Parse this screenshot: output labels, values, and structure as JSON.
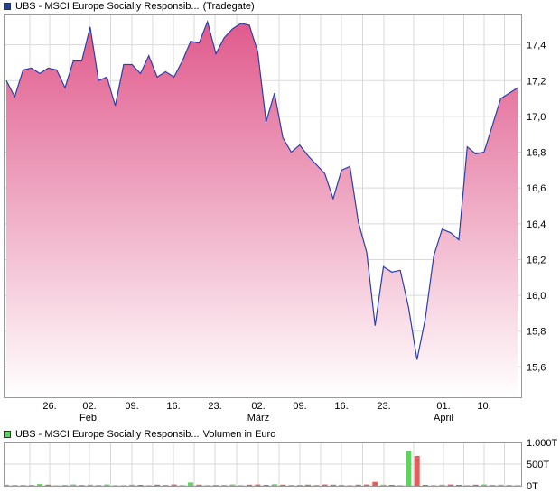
{
  "price_legend": {
    "label": "UBS - MSCI Europe Socially Responsib...",
    "venue": "(Tradegate)",
    "swatch_color": "#1f3f9f"
  },
  "volume_legend": {
    "label": "UBS - MSCI Europe Socially Responsib...",
    "unit_text": "Volumen in Euro",
    "swatch_color": "#5fd35f"
  },
  "colors": {
    "line": "#2a3fa8",
    "fill_top": "#e05a8c",
    "fill_bottom": "#ffffff",
    "grid": "#d9d9d9",
    "vol_up": "#5fd35f",
    "vol_down": "#e2605c"
  },
  "chart_data": [
    {
      "type": "area",
      "x_tick_labels": [
        "26.",
        "02.",
        "09.",
        "16.",
        "23.",
        "02.",
        "09.",
        "16.",
        "23.",
        "01.",
        "10."
      ],
      "x_month_labels": [
        {
          "label": "Feb.",
          "at_tick": 1
        },
        {
          "label": "März",
          "at_tick": 5
        },
        {
          "label": "April",
          "at_tick": 9
        }
      ],
      "y_tick_labels": [
        "17,4",
        "17,2",
        "17,0",
        "16,8",
        "16,6",
        "16,4",
        "16,2",
        "16,0",
        "15,8",
        "15,6"
      ],
      "y_ticks": [
        17.4,
        17.2,
        17.0,
        16.8,
        16.6,
        16.4,
        16.2,
        16.0,
        15.8,
        15.6
      ],
      "ylim": [
        15.43,
        17.57
      ],
      "values": [
        17.2,
        17.11,
        17.26,
        17.27,
        17.24,
        17.27,
        17.26,
        17.16,
        17.31,
        17.31,
        17.5,
        17.2,
        17.22,
        17.06,
        17.29,
        17.29,
        17.24,
        17.34,
        17.22,
        17.25,
        17.22,
        17.31,
        17.42,
        17.41,
        17.53,
        17.35,
        17.44,
        17.49,
        17.52,
        17.51,
        17.36,
        16.97,
        17.13,
        16.88,
        16.8,
        16.84,
        16.78,
        16.73,
        16.68,
        16.54,
        16.7,
        16.72,
        16.41,
        16.24,
        15.83,
        16.16,
        16.13,
        16.14,
        15.93,
        15.64,
        15.87,
        16.22,
        16.37,
        16.35,
        16.31,
        16.83,
        16.79,
        16.8,
        16.95,
        17.1,
        17.13,
        17.16
      ],
      "grid": true
    },
    {
      "type": "bar",
      "y_tick_labels": [
        "1.000T",
        "500T",
        "0T"
      ],
      "y_ticks": [
        1000,
        500,
        0
      ],
      "ylim": [
        0,
        1000
      ],
      "values": [
        25,
        15,
        15,
        20,
        40,
        25,
        10,
        15,
        30,
        20,
        25,
        15,
        30,
        10,
        15,
        25,
        20,
        15,
        25,
        20,
        30,
        15,
        75,
        25,
        15,
        20,
        15,
        30,
        15,
        25,
        30,
        20,
        35,
        25,
        15,
        20,
        25,
        15,
        30,
        25,
        20,
        15,
        25,
        30,
        90,
        25,
        20,
        15,
        810,
        690,
        20,
        15,
        25,
        30,
        20,
        15,
        25,
        30,
        20,
        25,
        20,
        15
      ],
      "up": [
        1,
        0,
        0,
        1,
        1,
        0,
        1,
        0,
        1,
        1,
        1,
        0,
        1,
        0,
        1,
        1,
        0,
        1,
        0,
        1,
        0,
        1,
        1,
        0,
        1,
        1,
        0,
        1,
        1,
        0,
        0,
        0,
        1,
        0,
        0,
        1,
        0,
        0,
        0,
        0,
        1,
        1,
        0,
        0,
        0,
        1,
        0,
        1,
        1,
        0,
        0,
        1,
        1,
        0,
        0,
        1,
        0,
        1,
        1,
        1,
        1,
        1
      ],
      "grid": true
    }
  ]
}
